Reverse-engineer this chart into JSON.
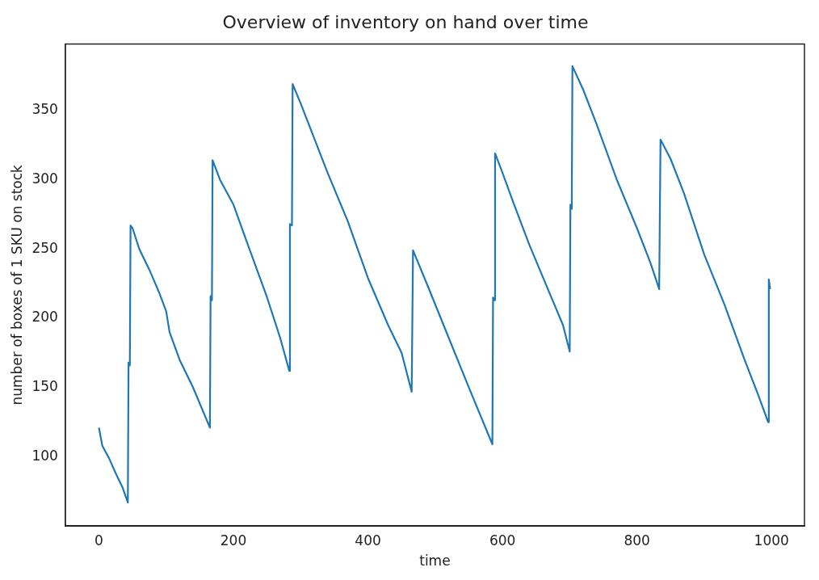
{
  "chart_data": {
    "type": "line",
    "title": "Overview of inventory on hand over time",
    "xlabel": "time",
    "ylabel": "number of boxes of 1 SKU on stock",
    "x": [
      0,
      5,
      15,
      25,
      35,
      43,
      44,
      46,
      47,
      50,
      60,
      75,
      90,
      100,
      105,
      120,
      140,
      165,
      166,
      168,
      169,
      180,
      200,
      220,
      250,
      270,
      283,
      284,
      287,
      288,
      300,
      340,
      370,
      400,
      430,
      450,
      465,
      467,
      490,
      520,
      550,
      585,
      586,
      588,
      589,
      600,
      615,
      640,
      665,
      690,
      700,
      701,
      703,
      704,
      720,
      740,
      770,
      800,
      820,
      833,
      835,
      850,
      870,
      900,
      930,
      960,
      980,
      995,
      996,
      998
    ],
    "series": [
      {
        "color": "#1f77b4",
        "values": [
          121,
          108,
          99,
          88,
          78,
          67,
          168,
          166,
          267,
          265,
          250,
          235,
          218,
          205,
          190,
          170,
          150,
          121,
          216,
          213,
          314,
          300,
          282,
          255,
          215,
          185,
          162,
          268,
          267,
          369,
          355,
          305,
          270,
          229,
          195,
          175,
          147,
          249,
          222,
          186,
          150,
          109,
          215,
          213,
          319,
          305,
          285,
          253,
          224,
          195,
          176,
          282,
          279,
          382,
          365,
          340,
          300,
          265,
          240,
          221,
          329,
          315,
          290,
          246,
          210,
          170,
          145,
          125,
          228,
          221
        ]
      }
    ],
    "xlim": [
      -50,
      1049
    ],
    "xticks": [
      0,
      200,
      400,
      600,
      800,
      1000
    ],
    "ylim": [
      50,
      398
    ],
    "yticks": [
      100,
      150,
      200,
      250,
      300,
      350
    ],
    "grid": false,
    "legend": false,
    "marker": "none",
    "line_style": "solid"
  }
}
